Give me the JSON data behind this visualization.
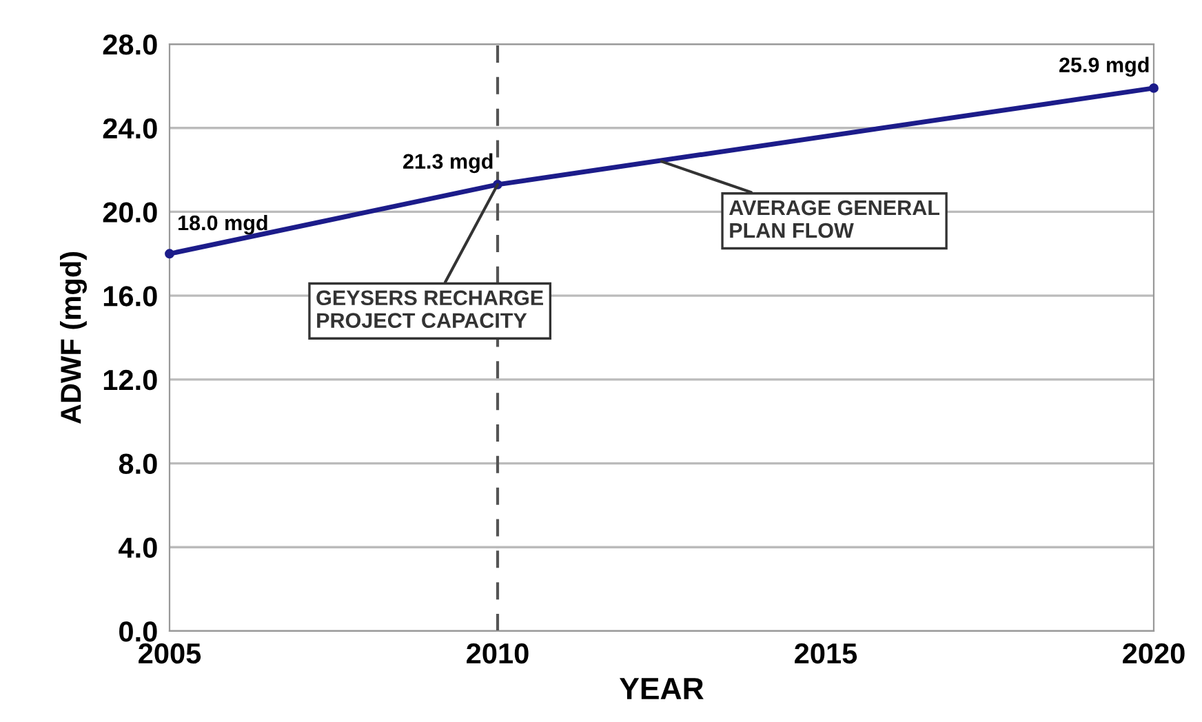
{
  "chart_data": {
    "type": "line",
    "xlabel": "YEAR",
    "ylabel": "ADWF (mgd)",
    "x": [
      2005,
      2010,
      2020
    ],
    "series": [
      {
        "color": "#1c1c8a",
        "values": [
          18.0,
          21.3,
          25.9
        ],
        "value_labels": [
          "18.0 mgd",
          "21.3 mgd",
          "25.9 mgd"
        ]
      }
    ],
    "xlim": [
      2005,
      2020
    ],
    "xticks": [
      2005,
      2010,
      2015,
      2020
    ],
    "ylim": [
      0,
      28
    ],
    "yticks": [
      {
        "value": 0,
        "label": "0.0"
      },
      {
        "value": 4,
        "label": "4.0"
      },
      {
        "value": 8,
        "label": "8.0"
      },
      {
        "value": 12,
        "label": "12.0"
      },
      {
        "value": 16,
        "label": "16.0"
      },
      {
        "value": 20,
        "label": "20.0"
      },
      {
        "value": 24,
        "label": "24.0"
      },
      {
        "value": 28,
        "label": "28.0"
      }
    ],
    "grid": "y",
    "marker": "circle",
    "line_style": "solid",
    "legend": false,
    "ref_lines": [
      {
        "axis": "x",
        "value": 2010,
        "color": "#555555",
        "line_style": "dashed"
      }
    ],
    "annotations": [
      {
        "text": "GEYSERS RECHARGE\nPROJECT CAPACITY",
        "x": 2010,
        "y": 21.3
      },
      {
        "text": "AVERAGE GENERAL\nPLAN FLOW",
        "x": 2012.5,
        "y": 22.4
      }
    ]
  }
}
